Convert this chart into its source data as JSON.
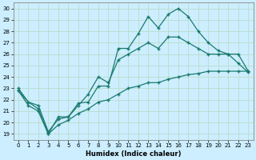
{
  "xlabel": "Humidex (Indice chaleur)",
  "bg_color": "#cceeff",
  "grid_color": "#bbddcc",
  "line_color": "#1a7a6e",
  "xlim": [
    -0.5,
    23.5
  ],
  "ylim": [
    18.5,
    30.5
  ],
  "yticks": [
    19,
    20,
    21,
    22,
    23,
    24,
    25,
    26,
    27,
    28,
    29,
    30
  ],
  "xticks": [
    0,
    1,
    2,
    3,
    4,
    5,
    6,
    7,
    8,
    9,
    10,
    11,
    12,
    13,
    14,
    15,
    16,
    17,
    18,
    19,
    20,
    21,
    22,
    23
  ],
  "series1_x": [
    0,
    1,
    2,
    3,
    4,
    5,
    6,
    7,
    8,
    9,
    10,
    11,
    12,
    13,
    14,
    15,
    16,
    17,
    18,
    19,
    20,
    21,
    22,
    23
  ],
  "series1_y": [
    23.0,
    21.8,
    21.2,
    19.0,
    20.5,
    20.5,
    21.7,
    21.8,
    23.2,
    23.2,
    26.5,
    26.5,
    27.8,
    29.3,
    28.3,
    29.5,
    30.0,
    29.3,
    28.0,
    27.0,
    26.3,
    26.0,
    25.2,
    24.4
  ],
  "series2_x": [
    0,
    1,
    2,
    3,
    4,
    5,
    6,
    7,
    8,
    9,
    10,
    11,
    12,
    13,
    14,
    15,
    16,
    17,
    18,
    19,
    20,
    21,
    22,
    23
  ],
  "series2_y": [
    22.8,
    21.8,
    21.5,
    19.2,
    20.3,
    20.5,
    21.5,
    22.5,
    24.0,
    23.5,
    25.5,
    26.0,
    26.5,
    27.0,
    26.5,
    27.5,
    27.5,
    27.0,
    26.5,
    26.0,
    26.0,
    26.0,
    26.0,
    24.5
  ],
  "series3_x": [
    0,
    1,
    2,
    3,
    4,
    5,
    6,
    7,
    8,
    9,
    10,
    11,
    12,
    13,
    14,
    15,
    16,
    17,
    18,
    19,
    20,
    21,
    22,
    23
  ],
  "series3_y": [
    22.8,
    21.5,
    21.0,
    19.0,
    19.8,
    20.2,
    20.8,
    21.2,
    21.8,
    22.0,
    22.5,
    23.0,
    23.2,
    23.5,
    23.5,
    23.8,
    24.0,
    24.2,
    24.3,
    24.5,
    24.5,
    24.5,
    24.5,
    24.5
  ]
}
